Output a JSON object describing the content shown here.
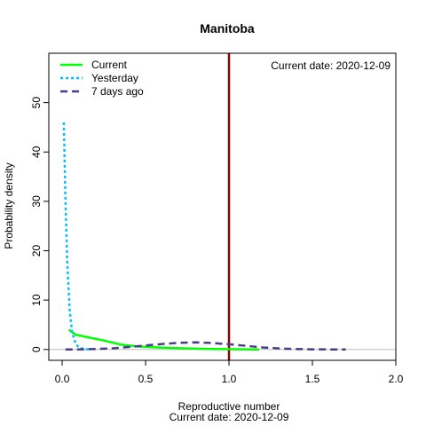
{
  "chart_data": {
    "type": "line",
    "title": "Manitoba",
    "xlabel": "Reproductive number",
    "xlabel_sub": "Current date:  2020-12-09",
    "ylabel": "Probability density",
    "annotation": "Current date:  2020-12-09",
    "xlim": [
      -0.08,
      2.0
    ],
    "ylim": [
      -2.2,
      60
    ],
    "xticks": [
      0.0,
      0.5,
      1.0,
      1.5,
      2.0
    ],
    "xtick_labels": [
      "0.0",
      "0.5",
      "1.0",
      "1.5",
      "2.0"
    ],
    "yticks": [
      0,
      10,
      20,
      30,
      40,
      50
    ],
    "ytick_labels": [
      "0",
      "10",
      "20",
      "30",
      "40",
      "50"
    ],
    "vline": {
      "x": 1.0,
      "color": "#8b0000"
    },
    "hline": {
      "y": 0,
      "color": "#bebebe"
    },
    "legend": {
      "position": "top-left",
      "entries": [
        "Current",
        "Yesterday",
        "7 days ago"
      ]
    },
    "series": [
      {
        "name": "Current",
        "color": "#00ff00",
        "dash": "solid",
        "x": [
          0.04,
          0.08,
          0.15,
          0.25,
          0.35,
          0.45,
          0.6,
          0.75,
          0.9,
          1.05,
          1.18
        ],
        "y": [
          4.0,
          3.0,
          2.5,
          1.8,
          1.0,
          0.6,
          0.35,
          0.2,
          0.1,
          0.05,
          0.02
        ]
      },
      {
        "name": "Yesterday",
        "color": "#00bfff",
        "dash": "dotted",
        "x": [
          0.01,
          0.02,
          0.03,
          0.045,
          0.06,
          0.08,
          0.1,
          0.13,
          0.17
        ],
        "y": [
          46.0,
          30.0,
          18.0,
          8.0,
          3.5,
          1.2,
          0.4,
          0.1,
          0.0
        ]
      },
      {
        "name": "7 days ago",
        "color": "#483d8b",
        "dash": "dashed",
        "x": [
          0.02,
          0.1,
          0.2,
          0.3,
          0.4,
          0.5,
          0.6,
          0.7,
          0.8,
          0.9,
          1.0,
          1.1,
          1.2,
          1.3,
          1.4,
          1.5,
          1.6,
          1.7
        ],
        "y": [
          0.0,
          0.02,
          0.1,
          0.2,
          0.5,
          0.8,
          1.1,
          1.35,
          1.45,
          1.3,
          1.05,
          0.75,
          0.4,
          0.2,
          0.08,
          0.03,
          0.01,
          0.0
        ]
      }
    ]
  }
}
